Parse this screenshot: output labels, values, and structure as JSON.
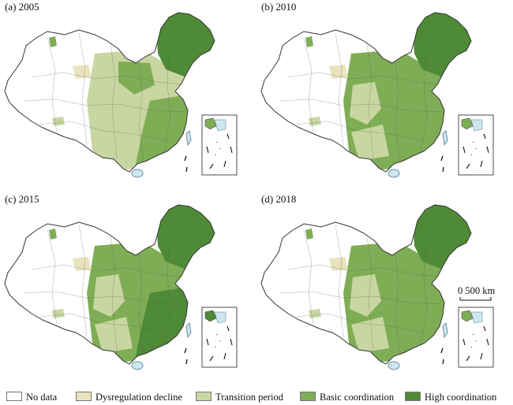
{
  "colors": {
    "no_data": "#ffffff",
    "dysregulation_decline": "#e8e3bd",
    "transition_period": "#c9d6a2",
    "basic_coordination": "#7fad55",
    "high_coordination": "#4f8a37",
    "border": "#333333",
    "water": "#cfe6ee"
  },
  "panels": [
    {
      "label": "(a) 2005"
    },
    {
      "label": "(b) 2010"
    },
    {
      "label": "(c) 2015"
    },
    {
      "label": "(d) 2018"
    }
  ],
  "scale_bar": {
    "label": "0      500 km"
  },
  "legend": {
    "items": [
      {
        "key": "no_data",
        "label": "No data"
      },
      {
        "key": "dysregulation_decline",
        "label": "Dysregulation decline"
      },
      {
        "key": "transition_period",
        "label": "Transition period"
      },
      {
        "key": "basic_coordination",
        "label": "Basic coordination"
      },
      {
        "key": "high_coordination",
        "label": "High coordination"
      }
    ]
  }
}
